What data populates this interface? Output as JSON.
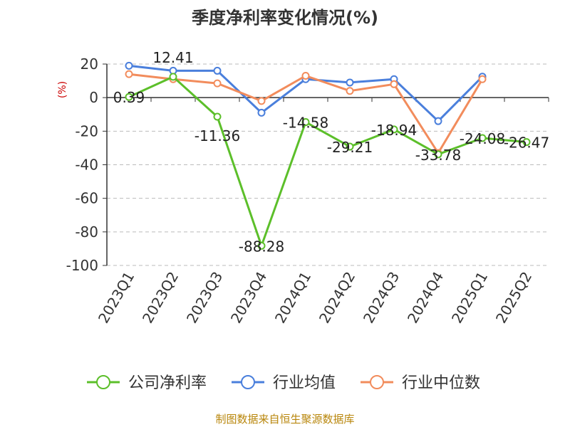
{
  "chart_data": {
    "type": "line",
    "title": "季度净利率变化情况(%)",
    "ylabel": "(%)",
    "xlabel": "",
    "categories": [
      "2023Q1",
      "2023Q2",
      "2023Q3",
      "2023Q4",
      "2024Q1",
      "2024Q2",
      "2024Q3",
      "2024Q4",
      "2025Q1",
      "2025Q2"
    ],
    "ylim": [
      -100,
      20
    ],
    "yticks": [
      20,
      0,
      -20,
      -40,
      -60,
      -80,
      -100
    ],
    "grid": true,
    "legend_position": "bottom",
    "series": [
      {
        "name": "公司净利率",
        "color": "#5cbf2a",
        "values": [
          0.39,
          12.41,
          -11.36,
          -88.28,
          -14.58,
          -29.21,
          -18.94,
          -33.78,
          -24.08,
          -26.47
        ],
        "labels": [
          "0.39",
          "12.41",
          "-11.36",
          "-88.28",
          "-14.58",
          "-29.21",
          "-18.94",
          "-33.78",
          "-24.08",
          "-26.47"
        ]
      },
      {
        "name": "行业均值",
        "color": "#4a7fdc",
        "values": [
          19,
          16,
          16,
          -9,
          11,
          9,
          11,
          -14,
          12.5,
          null
        ]
      },
      {
        "name": "行业中位数",
        "color": "#f28c5c",
        "values": [
          14,
          11,
          8.5,
          -2,
          13,
          4,
          8,
          -33,
          11,
          null
        ]
      }
    ]
  },
  "footer": "制图数据来自恒生聚源数据库"
}
